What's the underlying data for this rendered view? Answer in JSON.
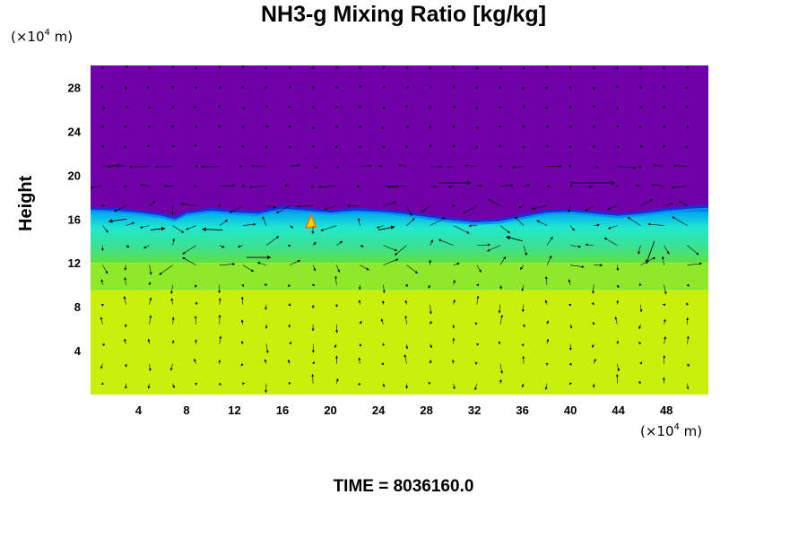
{
  "chart_data": {
    "type": "heatmap",
    "title": "NH3-g Mixing Ratio [kg/kg]",
    "ylabel": "Height",
    "x_unit": {
      "prefix": "(×10",
      "exp": "4",
      "suffix": " m)"
    },
    "y_unit": {
      "prefix": "(×10",
      "exp": "4",
      "suffix": " m)"
    },
    "xlim": [
      0,
      51.5
    ],
    "ylim": [
      0,
      30
    ],
    "x_ticks": [
      4,
      8,
      12,
      16,
      20,
      24,
      28,
      32,
      36,
      40,
      44,
      48
    ],
    "y_ticks": [
      4,
      8,
      12,
      16,
      20,
      24,
      28
    ],
    "regions": [
      {
        "name": "upper",
        "color": "#7000a8",
        "y_from": 17.0,
        "y_to": 30
      },
      {
        "name": "cloud-layer",
        "color": "#22e0b0",
        "y_from": 12.0,
        "y_to": 17.0
      },
      {
        "name": "transition",
        "color": "#8ee82c",
        "y_from": 9.5,
        "y_to": 12.0
      },
      {
        "name": "lower",
        "color": "#c8f00a",
        "y_from": 0,
        "y_to": 9.5
      }
    ],
    "top_boundary": [
      [
        0,
        17.0
      ],
      [
        2,
        16.9
      ],
      [
        4,
        16.7
      ],
      [
        6,
        16.4
      ],
      [
        7,
        16.1
      ],
      [
        8,
        16.6
      ],
      [
        10,
        16.9
      ],
      [
        12,
        16.7
      ],
      [
        14,
        16.6
      ],
      [
        16,
        17.1
      ],
      [
        18,
        16.9
      ],
      [
        20,
        16.7
      ],
      [
        22,
        16.9
      ],
      [
        24,
        16.8
      ],
      [
        26,
        16.6
      ],
      [
        28,
        16.3
      ],
      [
        30,
        16.0
      ],
      [
        32,
        15.8
      ],
      [
        34,
        15.9
      ],
      [
        36,
        16.3
      ],
      [
        38,
        16.7
      ],
      [
        40,
        16.8
      ],
      [
        42,
        16.6
      ],
      [
        44,
        16.4
      ],
      [
        46,
        16.6
      ],
      [
        48,
        16.9
      ],
      [
        50,
        17.1
      ],
      [
        51.5,
        17.2
      ]
    ],
    "hotspot": {
      "x": 18.4,
      "y": 15.7,
      "color": "#f6d800"
    },
    "wind_vectors": [
      {
        "x": 3,
        "y": 16,
        "u": -2.2,
        "v": -0.3
      },
      {
        "x": 5,
        "y": 15,
        "u": 1.8,
        "v": 0.2
      },
      {
        "x": 11,
        "y": 15,
        "u": -2.5,
        "v": 0.1
      },
      {
        "x": 13,
        "y": 12.5,
        "u": 3.0,
        "v": 0.0
      },
      {
        "x": 29,
        "y": 19.3,
        "u": 4.0,
        "v": 0.0
      },
      {
        "x": 40,
        "y": 19.3,
        "u": 5.5,
        "v": 0.0
      },
      {
        "x": 47,
        "y": 14,
        "u": -1.0,
        "v": -2.8
      },
      {
        "x": 24,
        "y": 15,
        "u": 2.0,
        "v": 0.4
      },
      {
        "x": 36,
        "y": 14,
        "u": -2.0,
        "v": 0.5
      }
    ]
  },
  "footer": {
    "time_label": "TIME = 8036160.0"
  }
}
